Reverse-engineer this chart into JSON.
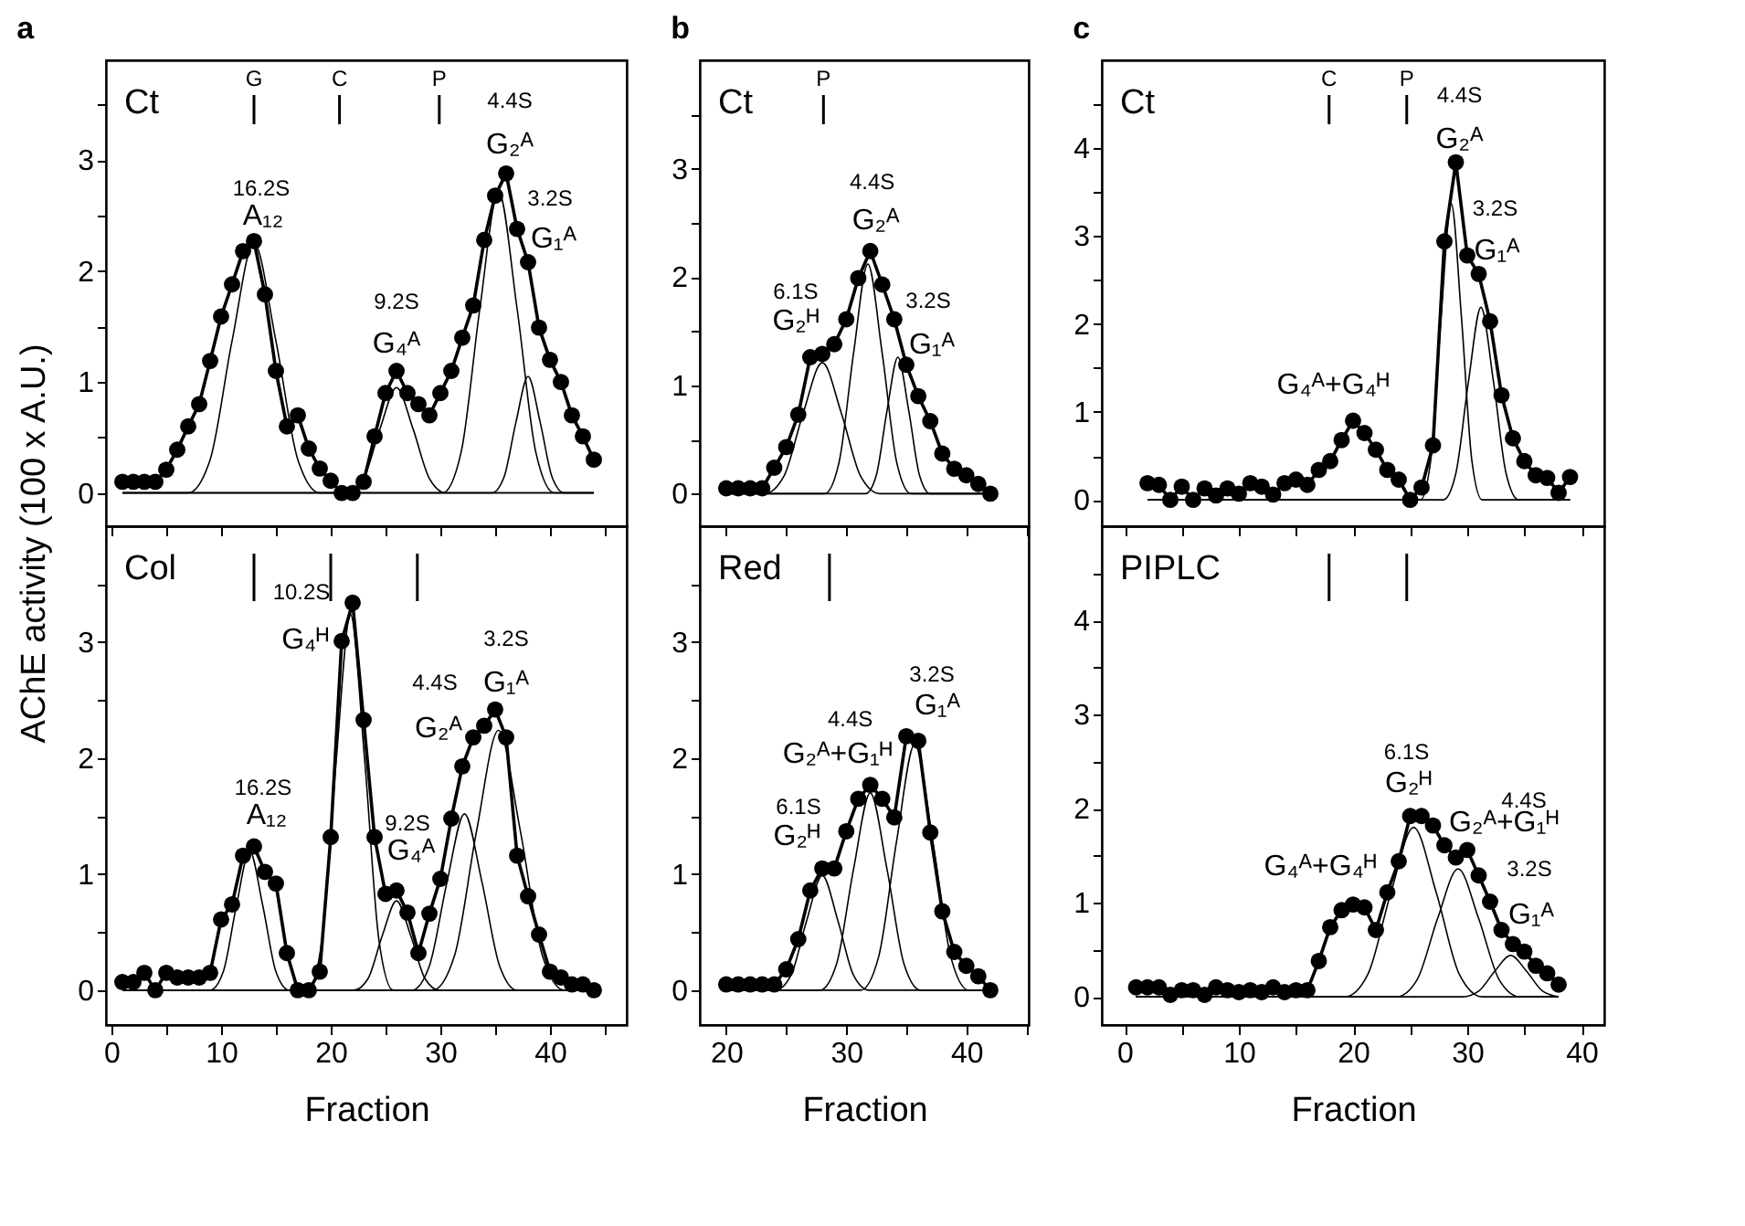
{
  "chart_data": [
    {
      "type": "line",
      "title": "a",
      "ylabel": "AChE activity (100 x A.U.)",
      "xlim": [
        -0.5,
        47
      ],
      "xticks": [
        0,
        {
          "value": 5,
          "label": null
        },
        10,
        {
          "value": 15,
          "label": null
        },
        20,
        {
          "value": 25,
          "label": null
        },
        30,
        {
          "value": 35,
          "label": null
        },
        40,
        {
          "value": 45,
          "label": null
        }
      ],
      "ylim": [
        -0.3,
        3.9
      ],
      "yticks": [
        0,
        {
          "value": 0.5,
          "label": null
        },
        1,
        {
          "value": 1.5,
          "label": null
        },
        2,
        {
          "value": 2.5,
          "label": null
        },
        3,
        {
          "value": 3.5,
          "label": null
        }
      ],
      "tick_labels": "y",
      "series": [
        {
          "marker": "circle",
          "color": "#000000",
          "x": [
            1,
            2,
            3,
            4,
            5,
            6,
            7,
            8,
            9,
            10,
            11,
            12,
            13,
            14,
            15,
            16,
            17,
            18,
            19,
            20,
            21,
            22,
            23,
            24,
            25,
            26,
            27,
            28,
            29,
            30,
            31,
            32,
            33,
            34,
            35,
            36,
            37,
            38,
            39,
            40,
            41,
            42,
            43,
            44
          ],
          "values": [
            0.1,
            0.1,
            0.1,
            0.1,
            0.21,
            0.39,
            0.6,
            0.8,
            1.19,
            1.59,
            1.88,
            2.18,
            2.27,
            1.79,
            1.1,
            0.6,
            0.7,
            0.4,
            0.22,
            0.11,
            0,
            0,
            0.1,
            0.51,
            0.9,
            1.1,
            0.9,
            0.8,
            0.7,
            0.9,
            1.1,
            1.4,
            1.69,
            2.28,
            2.68,
            2.88,
            2.38,
            2.08,
            1.49,
            1.2,
            1.0,
            0.7,
            0.51,
            0.3
          ]
        },
        {
          "marker": "none",
          "color": "#000000",
          "x": [
            1,
            7,
            9,
            11,
            13,
            15,
            17,
            19,
            44
          ],
          "values": [
            0,
            0,
            0.3,
            1.37,
            2.25,
            1.37,
            0.3,
            0,
            0
          ]
        },
        {
          "marker": "none",
          "color": "#000000",
          "x": [
            1,
            21.5,
            23,
            24.5,
            26,
            27.5,
            29,
            30.5,
            44
          ],
          "values": [
            0,
            0,
            0.13,
            0.58,
            0.95,
            0.58,
            0.13,
            0,
            0
          ]
        },
        {
          "marker": "none",
          "color": "#000000",
          "x": [
            1,
            30.2,
            31.9,
            33.6,
            35.3,
            37,
            38.7,
            40.4,
            44
          ],
          "values": [
            0,
            0,
            0.37,
            1.66,
            2.72,
            1.66,
            0.37,
            0,
            0
          ]
        },
        {
          "marker": "none",
          "color": "#000000",
          "x": [
            1,
            34.7,
            35.8,
            36.9,
            38,
            39.1,
            40.2,
            41.3,
            44
          ],
          "values": [
            0,
            0,
            0.14,
            0.64,
            1.05,
            0.64,
            0.14,
            0,
            0
          ]
        }
      ],
      "ref_lines": [
        {
          "axis": "x",
          "value": 13,
          "label": "G"
        },
        {
          "axis": "x",
          "value": 20.8,
          "label": "C"
        },
        {
          "axis": "x",
          "value": 29.9,
          "label": "P"
        }
      ],
      "annotations": [
        "Ct",
        {
          "text": "16.2S",
          "x": 13,
          "y": 2.27
        },
        {
          "text": "A₁₂",
          "x": 13,
          "y": 2.27
        },
        {
          "text": "9.2S",
          "x": 26,
          "y": 1.1
        },
        {
          "text": "G₄ᴬ",
          "x": 26,
          "y": 1.1
        },
        {
          "text": "4.4S",
          "x": 36,
          "y": 2.88
        },
        {
          "text": "G₂ᴬ",
          "x": 36,
          "y": 2.88
        },
        {
          "text": "3.2S",
          "x": 38,
          "y": 2.08
        },
        {
          "text": "G₁ᴬ",
          "x": 38,
          "y": 2.08
        }
      ]
    },
    {
      "type": "line",
      "xlabel": "Fraction",
      "xlim": [
        -0.5,
        47
      ],
      "xticks": [
        0,
        {
          "value": 5,
          "label": null
        },
        10,
        {
          "value": 15,
          "label": null
        },
        20,
        {
          "value": 25,
          "label": null
        },
        30,
        {
          "value": 35,
          "label": null
        },
        40,
        {
          "value": 45,
          "label": null
        }
      ],
      "ylim": [
        -0.3,
        4.0
      ],
      "yticks": [
        0,
        {
          "value": 0.5,
          "label": null
        },
        1,
        {
          "value": 1.5,
          "label": null
        },
        2,
        {
          "value": 2.5,
          "label": null
        },
        3,
        {
          "value": 3.5,
          "label": null
        }
      ],
      "series": [
        {
          "marker": "circle",
          "color": "#000000",
          "x": [
            1,
            2,
            3,
            4,
            5,
            6,
            7,
            8,
            9,
            10,
            11,
            12,
            13,
            14,
            15,
            16,
            17,
            18,
            19,
            20,
            21,
            22,
            23,
            24,
            25,
            26,
            27,
            28,
            29,
            30,
            31,
            32,
            33,
            34,
            35,
            36,
            37,
            38,
            39,
            40,
            41,
            42,
            43,
            44
          ],
          "values": [
            0.07,
            0.07,
            0.15,
            0,
            0.15,
            0.11,
            0.11,
            0.11,
            0.15,
            0.61,
            0.74,
            1.16,
            1.24,
            1.02,
            0.92,
            0.32,
            0,
            0,
            0.16,
            1.32,
            3.01,
            3.34,
            2.33,
            1.32,
            0.83,
            0.86,
            0.67,
            0.32,
            0.66,
            0.96,
            1.48,
            1.93,
            2.18,
            2.28,
            2.42,
            2.18,
            1.16,
            0.81,
            0.48,
            0.16,
            0.11,
            0.05,
            0.05,
            0
          ]
        },
        {
          "marker": "none",
          "color": "#000000",
          "x": [
            1,
            9,
            10.2,
            11.4,
            12.6,
            13.8,
            15,
            16.2,
            44
          ],
          "values": [
            0,
            0,
            0.16,
            0.73,
            1.2,
            0.73,
            0.16,
            0,
            0
          ]
        },
        {
          "marker": "none",
          "color": "#000000",
          "x": [
            1,
            17.9,
            19.2,
            20.5,
            21.8,
            23.1,
            24.4,
            25.7,
            44
          ],
          "values": [
            0,
            0,
            0.43,
            1.98,
            3.24,
            1.98,
            0.43,
            0,
            0
          ]
        },
        {
          "marker": "none",
          "color": "#000000",
          "x": [
            1,
            22.1,
            23.4,
            24.7,
            26,
            27.3,
            28.6,
            29.9,
            44
          ],
          "values": [
            0,
            0,
            0.1,
            0.47,
            0.77,
            0.47,
            0.1,
            0,
            0
          ]
        },
        {
          "marker": "none",
          "color": "#000000",
          "x": [
            1,
            27.4,
            29,
            30.6,
            32.2,
            33.8,
            35.4,
            37,
            44
          ],
          "values": [
            0,
            0,
            0.21,
            0.93,
            1.52,
            0.93,
            0.21,
            0,
            0
          ]
        },
        {
          "marker": "none",
          "color": "#000000",
          "x": [
            1,
            29.3,
            31.3,
            33.3,
            35.3,
            37.3,
            39.3,
            41.3,
            44
          ],
          "values": [
            0,
            0,
            0.3,
            1.37,
            2.24,
            1.37,
            0.3,
            0,
            0
          ]
        }
      ],
      "ref_lines": [
        {
          "axis": "x",
          "value": 13
        },
        {
          "axis": "x",
          "value": 20
        },
        {
          "axis": "x",
          "value": 27.9
        }
      ],
      "annotations": [
        "Col",
        {
          "text": "10.2S",
          "x": 22,
          "y": 3.34
        },
        {
          "text": "G₄ᴴ",
          "x": 22,
          "y": 3.34
        },
        {
          "text": "16.2S",
          "x": 13,
          "y": 1.24
        },
        {
          "text": "A₁₂",
          "x": 13,
          "y": 1.24
        },
        {
          "text": "9.2S",
          "x": 26,
          "y": 0.86
        },
        {
          "text": "G₄ᴬ",
          "x": 26,
          "y": 0.86
        },
        {
          "text": "4.4S",
          "x": 33,
          "y": 2.18
        },
        {
          "text": "G₂ᴬ",
          "x": 33,
          "y": 2.18
        },
        {
          "text": "3.2S",
          "x": 35,
          "y": 2.42
        },
        {
          "text": "G₁ᴬ",
          "x": 35,
          "y": 2.42
        }
      ]
    },
    {
      "type": "line",
      "title": "b",
      "xlim": [
        17.8,
        45.2
      ],
      "xticks": [
        20,
        {
          "value": 25,
          "label": null
        },
        30,
        {
          "value": 35,
          "label": null
        },
        40,
        {
          "value": 45,
          "label": null
        }
      ],
      "ylim": [
        -0.3,
        4.0
      ],
      "yticks": [
        0,
        {
          "value": 0.5,
          "label": null
        },
        1,
        {
          "value": 1.5,
          "label": null
        },
        2,
        {
          "value": 2.5,
          "label": null
        },
        3,
        {
          "value": 3.5,
          "label": null
        }
      ],
      "tick_labels": "y",
      "series": [
        {
          "marker": "circle",
          "color": "#000000",
          "x": [
            20,
            21,
            22,
            23,
            24,
            25,
            26,
            27,
            28,
            29,
            30,
            31,
            32,
            33,
            34,
            35,
            36,
            37,
            38,
            39,
            40,
            41,
            42
          ],
          "values": [
            0.05,
            0.05,
            0.05,
            0.05,
            0.24,
            0.43,
            0.73,
            1.26,
            1.29,
            1.38,
            1.61,
            1.99,
            2.24,
            1.93,
            1.61,
            1.19,
            0.9,
            0.67,
            0.37,
            0.23,
            0.17,
            0.09,
            0
          ]
        },
        {
          "marker": "none",
          "color": "#000000",
          "x": [
            20,
            23.2,
            24.8,
            26.4,
            28,
            29.6,
            31.2,
            32.8,
            42
          ],
          "values": [
            0,
            0,
            0.16,
            0.74,
            1.21,
            0.74,
            0.16,
            0,
            0
          ]
        },
        {
          "marker": "none",
          "color": "#000000",
          "x": [
            20,
            28.2,
            29.4,
            30.6,
            31.8,
            33,
            34.2,
            35.4,
            42
          ],
          "values": [
            0,
            0,
            0.29,
            1.29,
            2.12,
            1.29,
            0.29,
            0,
            0
          ]
        },
        {
          "marker": "none",
          "color": "#000000",
          "x": [
            20,
            31.6,
            32.5,
            33.4,
            34.3,
            35.2,
            36.1,
            37,
            42
          ],
          "values": [
            0,
            0,
            0.17,
            0.77,
            1.26,
            0.77,
            0.17,
            0,
            0
          ]
        }
      ],
      "ref_lines": [
        {
          "axis": "x",
          "value": 28.1,
          "label": "P"
        }
      ],
      "annotations": [
        "Ct",
        {
          "text": "6.1S",
          "x": 27,
          "y": 1.26
        },
        {
          "text": "G₂ᴴ",
          "x": 27,
          "y": 1.26
        },
        {
          "text": "4.4S",
          "x": 32,
          "y": 2.24
        },
        {
          "text": "G₂ᴬ",
          "x": 32,
          "y": 2.24
        },
        {
          "text": "3.2S",
          "x": 35,
          "y": 1.19
        },
        {
          "text": "G₁ᴬ",
          "x": 35,
          "y": 1.19
        }
      ]
    },
    {
      "type": "line",
      "xlabel": "Fraction",
      "xlim": [
        17.8,
        45.2
      ],
      "xticks": [
        20,
        {
          "value": 25,
          "label": null
        },
        30,
        {
          "value": 35,
          "label": null
        },
        40,
        {
          "value": 45,
          "label": null
        }
      ],
      "ylim": [
        -0.3,
        4.0
      ],
      "yticks": [
        0,
        {
          "value": 0.5,
          "label": null
        },
        1,
        {
          "value": 1.5,
          "label": null
        },
        2,
        {
          "value": 2.5,
          "label": null
        },
        3,
        {
          "value": 3.5,
          "label": null
        }
      ],
      "series": [
        {
          "marker": "circle",
          "color": "#000000",
          "x": [
            20,
            21,
            22,
            23,
            24,
            25,
            26,
            27,
            28,
            29,
            30,
            31,
            32,
            33,
            34,
            35,
            36,
            37,
            38,
            39,
            40,
            41,
            42
          ],
          "values": [
            0.05,
            0.05,
            0.05,
            0.05,
            0.05,
            0.18,
            0.44,
            0.86,
            1.05,
            1.05,
            1.37,
            1.65,
            1.77,
            1.65,
            1.49,
            2.19,
            2.15,
            1.36,
            0.68,
            0.33,
            0.21,
            0.12,
            0
          ]
        },
        {
          "marker": "none",
          "color": "#000000",
          "x": [
            20,
            24.1,
            25.4,
            26.7,
            28,
            29.3,
            30.6,
            31.9,
            42
          ],
          "values": [
            0,
            0,
            0.13,
            0.6,
            0.99,
            0.6,
            0.13,
            0,
            0
          ]
        },
        {
          "marker": "none",
          "color": "#000000",
          "x": [
            20,
            27.8,
            29.2,
            30.6,
            32,
            33.4,
            34.8,
            36.2,
            42
          ],
          "values": [
            0,
            0,
            0.23,
            1.04,
            1.7,
            1.04,
            0.23,
            0,
            0
          ]
        },
        {
          "marker": "none",
          "color": "#000000",
          "x": [
            20,
            31.2,
            32.7,
            34.2,
            35.7,
            37.2,
            38.7,
            40.2,
            42
          ],
          "values": [
            0,
            0,
            0.29,
            1.29,
            2.12,
            1.29,
            0.29,
            0,
            0
          ]
        }
      ],
      "ref_lines": [
        {
          "axis": "x",
          "value": 28.6
        }
      ],
      "annotations": [
        "Red",
        {
          "text": "6.1S",
          "x": 28,
          "y": 1.05
        },
        {
          "text": "G₂ᴴ",
          "x": 28,
          "y": 1.05
        },
        {
          "text": "4.4S",
          "x": 32,
          "y": 1.77
        },
        {
          "text": "G₂ᴬ+G₁ᴴ",
          "x": 32,
          "y": 1.77
        },
        {
          "text": "3.2S",
          "x": 35,
          "y": 2.19
        },
        {
          "text": "G₁ᴬ",
          "x": 35,
          "y": 2.19
        }
      ]
    },
    {
      "type": "line",
      "title": "c",
      "xlim": [
        -2,
        42
      ],
      "xticks": [
        0,
        {
          "value": 5,
          "label": null
        },
        10,
        {
          "value": 15,
          "label": null
        },
        20,
        {
          "value": 25,
          "label": null
        },
        30,
        {
          "value": 35,
          "label": null
        },
        40
      ],
      "ylim": [
        -0.3,
        5.0
      ],
      "yticks": [
        0,
        {
          "value": 0.5,
          "label": null
        },
        1,
        {
          "value": 1.5,
          "label": null
        },
        2,
        {
          "value": 2.5,
          "label": null
        },
        3,
        {
          "value": 3.5,
          "label": null
        },
        4,
        {
          "value": 4.5,
          "label": null
        }
      ],
      "tick_labels": "y",
      "series": [
        {
          "marker": "circle",
          "color": "#000000",
          "x": [
            2,
            3,
            4,
            5,
            6,
            7,
            8,
            9,
            10,
            11,
            12,
            13,
            14,
            15,
            16,
            17,
            18,
            19,
            20,
            21,
            22,
            23,
            24,
            25,
            26,
            27,
            28,
            29,
            30,
            31,
            32,
            33,
            34,
            35,
            36,
            37,
            38,
            39
          ],
          "values": [
            0.19,
            0.17,
            0,
            0.15,
            0,
            0.13,
            0.05,
            0.13,
            0.07,
            0.19,
            0.15,
            0.06,
            0.19,
            0.23,
            0.17,
            0.34,
            0.44,
            0.68,
            0.9,
            0.76,
            0.57,
            0.34,
            0.23,
            0,
            0.14,
            0.62,
            2.94,
            3.84,
            2.78,
            2.57,
            2.03,
            1.19,
            0.7,
            0.44,
            0.28,
            0.25,
            0.08,
            0.26
          ]
        },
        {
          "marker": "none",
          "color": "#000000",
          "x": [
            2,
            25.9,
            26.8,
            27.7,
            28.6,
            29.5,
            30.4,
            31.3,
            39
          ],
          "values": [
            0,
            0,
            0.45,
            2.06,
            3.37,
            2.06,
            0.45,
            0,
            0
          ]
        },
        {
          "marker": "none",
          "color": "#000000",
          "x": [
            2,
            27.9,
            29,
            30.1,
            31.2,
            32.3,
            33.4,
            34.5,
            39
          ],
          "values": [
            0,
            0,
            0.3,
            1.34,
            2.19,
            1.34,
            0.3,
            0,
            0
          ]
        }
      ],
      "ref_lines": [
        {
          "axis": "x",
          "value": 17.9,
          "label": "C"
        },
        {
          "axis": "x",
          "value": 24.7,
          "label": "P"
        }
      ],
      "annotations": [
        "Ct",
        {
          "text": "4.4S",
          "x": 29,
          "y": 3.84
        },
        {
          "text": "G₂ᴬ",
          "x": 29,
          "y": 3.84
        },
        {
          "text": "3.2S",
          "x": 31,
          "y": 2.57
        },
        {
          "text": "G₁ᴬ",
          "x": 31,
          "y": 2.57
        },
        {
          "text": "G₄ᴬ+G₄ᴴ",
          "x": 20,
          "y": 0.9
        }
      ]
    },
    {
      "type": "line",
      "xlabel": "Fraction",
      "xlim": [
        -2,
        42
      ],
      "xticks": [
        0,
        {
          "value": 5,
          "label": null
        },
        10,
        {
          "value": 15,
          "label": null
        },
        20,
        {
          "value": 25,
          "label": null
        },
        30,
        {
          "value": 35,
          "label": null
        },
        40
      ],
      "ylim": [
        -0.3,
        5.0
      ],
      "yticks": [
        0,
        {
          "value": 0.5,
          "label": null
        },
        1,
        {
          "value": 1.5,
          "label": null
        },
        2,
        {
          "value": 2.5,
          "label": null
        },
        3,
        {
          "value": 3.5,
          "label": null
        },
        4,
        {
          "value": 4.5,
          "label": null
        }
      ],
      "series": [
        {
          "marker": "circle",
          "color": "#000000",
          "x": [
            1,
            2,
            3,
            4,
            5,
            6,
            7,
            8,
            9,
            10,
            11,
            12,
            13,
            14,
            15,
            16,
            17,
            18,
            19,
            20,
            21,
            22,
            23,
            24,
            25,
            26,
            27,
            28,
            29,
            30,
            31,
            32,
            33,
            34,
            35,
            36,
            37,
            38
          ],
          "values": [
            0.1,
            0.1,
            0.1,
            0.02,
            0.07,
            0.07,
            0.02,
            0.1,
            0.07,
            0.05,
            0.07,
            0.05,
            0.1,
            0.05,
            0.07,
            0.07,
            0.38,
            0.74,
            0.92,
            0.98,
            0.95,
            0.71,
            1.11,
            1.44,
            1.92,
            1.92,
            1.82,
            1.61,
            1.48,
            1.56,
            1.29,
            1.01,
            0.71,
            0.56,
            0.48,
            0.33,
            0.25,
            0.13
          ]
        },
        {
          "marker": "none",
          "color": "#000000",
          "x": [
            1,
            19.3,
            21.3,
            23.3,
            25.3,
            27.3,
            29.3,
            31.3,
            38
          ],
          "values": [
            0,
            0,
            0.24,
            1.1,
            1.8,
            1.1,
            0.24,
            0,
            0
          ]
        },
        {
          "marker": "none",
          "color": "#000000",
          "x": [
            1,
            23.8,
            25.6,
            27.4,
            29.2,
            31,
            32.8,
            34.6,
            38
          ],
          "values": [
            0,
            0,
            0.18,
            0.83,
            1.36,
            0.83,
            0.18,
            0,
            0
          ]
        },
        {
          "marker": "none",
          "color": "#000000",
          "x": [
            1,
            29.6,
            31,
            32.4,
            33.8,
            35.2,
            36.6,
            38
          ],
          "values": [
            0,
            0,
            0.06,
            0.27,
            0.44,
            0.27,
            0.06,
            0
          ]
        }
      ],
      "ref_lines": [
        {
          "axis": "x",
          "value": 17.9
        },
        {
          "axis": "x",
          "value": 24.7
        }
      ],
      "annotations": [
        "PIPLC",
        {
          "text": "6.1S",
          "x": 25,
          "y": 1.92
        },
        {
          "text": "G₂ᴴ",
          "x": 25,
          "y": 1.92
        },
        {
          "text": "4.4S",
          "x": 30,
          "y": 1.56
        },
        {
          "text": "G₂ᴬ+G₁ᴴ",
          "x": 30,
          "y": 1.56
        },
        {
          "text": "3.2S",
          "x": 34,
          "y": 0.56
        },
        {
          "text": "G₁ᴬ",
          "x": 34,
          "y": 0.56
        },
        {
          "text": "G₄ᴬ+G₄ᴴ",
          "x": 20,
          "y": 0.98
        }
      ]
    }
  ]
}
